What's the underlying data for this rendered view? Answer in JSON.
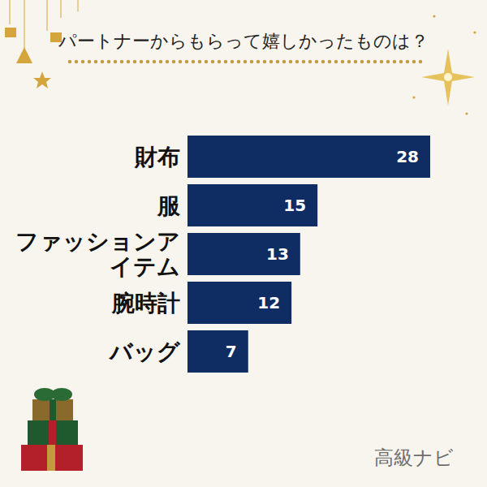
{
  "chart_data": {
    "type": "bar",
    "orientation": "horizontal",
    "title": "パートナーからもらって嬉しかったものは？",
    "categories": [
      "財布",
      "服",
      "ファッションアイテム",
      "腕時計",
      "バッグ"
    ],
    "values": [
      28,
      15,
      13,
      12,
      7
    ],
    "color": "#0f2d63",
    "xlim": [
      0,
      28
    ],
    "data_labels": true,
    "tick_labels": "y",
    "grid": false,
    "annotations": [
      "高級ナビ"
    ]
  }
}
